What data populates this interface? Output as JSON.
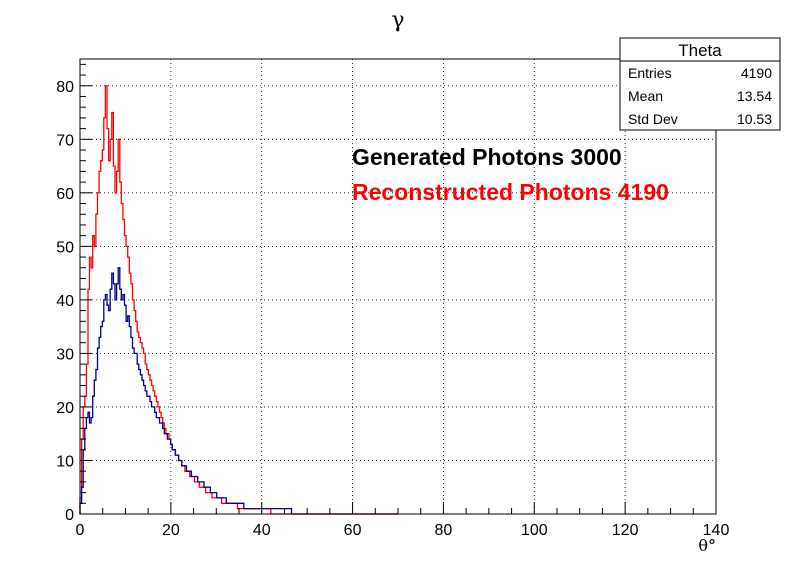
{
  "chart_data": {
    "type": "line",
    "title": "γ",
    "xlabel": "θ°",
    "ylabel": "",
    "xlim": [
      0,
      140
    ],
    "ylim": [
      0,
      85
    ],
    "x_ticks": [
      0,
      20,
      40,
      60,
      80,
      100,
      120,
      140
    ],
    "y_ticks": [
      0,
      10,
      20,
      30,
      40,
      50,
      60,
      70,
      80
    ],
    "grid": true,
    "bin_width": 0.35,
    "series": [
      {
        "name": "Generated Photons 3000",
        "color": "#00008b",
        "values": [
          2,
          5,
          12,
          16,
          18,
          19,
          17,
          18,
          22,
          25,
          27,
          31,
          33,
          35,
          36,
          40,
          41,
          39,
          38,
          42,
          45,
          43,
          40,
          43,
          46,
          42,
          40,
          41,
          39,
          36,
          37,
          35,
          33,
          31,
          30,
          30,
          28,
          27,
          26,
          25,
          24,
          23,
          22,
          22,
          21,
          20,
          20,
          19,
          18,
          18,
          17,
          17,
          16,
          15,
          15,
          14,
          14,
          13,
          12,
          12,
          11,
          11,
          10,
          10,
          9,
          9,
          9,
          8,
          8,
          8,
          7,
          7,
          7,
          7,
          6,
          6,
          6,
          6,
          5,
          5,
          5,
          5,
          4,
          4,
          4,
          4,
          3,
          3,
          3,
          3,
          3,
          3,
          2,
          2,
          2,
          2,
          2,
          2,
          2,
          2,
          2,
          2,
          2,
          1,
          1,
          1,
          1,
          1,
          1,
          1,
          1,
          1,
          1,
          1,
          1,
          1,
          1,
          1,
          1,
          1,
          1,
          1,
          1,
          1,
          1,
          1,
          1,
          1,
          1,
          1,
          1,
          1,
          1,
          0,
          0,
          0,
          0,
          0,
          0,
          0,
          0,
          0,
          0,
          0,
          0,
          0,
          0,
          0,
          0,
          0,
          0,
          0,
          0,
          0,
          0,
          0,
          0,
          0,
          0,
          0,
          0,
          0,
          0,
          0,
          0,
          0,
          0,
          0,
          0,
          0,
          0,
          0,
          0,
          0,
          0,
          0,
          0,
          0,
          0,
          0,
          0,
          0,
          0,
          0,
          0,
          0,
          0,
          0,
          0,
          0,
          0,
          0,
          0,
          0,
          0,
          0,
          0,
          0,
          0,
          0
        ]
      },
      {
        "name": "Reconstructed Photons 4190",
        "color": "#ff0000",
        "values": [
          3,
          14,
          20,
          22,
          28,
          42,
          48,
          46,
          52,
          50,
          56,
          60,
          64,
          66,
          68,
          74,
          80,
          72,
          66,
          70,
          75,
          65,
          60,
          64,
          70,
          62,
          58,
          55,
          52,
          50,
          48,
          45,
          43,
          40,
          38,
          36,
          34,
          33,
          32,
          31,
          30,
          28,
          27,
          26,
          25,
          24,
          23,
          22,
          21,
          20,
          19,
          18,
          17,
          16,
          15,
          15,
          14,
          13,
          12,
          12,
          11,
          11,
          10,
          10,
          9,
          9,
          8,
          8,
          8,
          7,
          7,
          7,
          6,
          6,
          6,
          5,
          5,
          5,
          5,
          4,
          4,
          4,
          4,
          3,
          3,
          3,
          3,
          3,
          3,
          2,
          2,
          2,
          2,
          2,
          2,
          2,
          2,
          2,
          2,
          1,
          1,
          1,
          1,
          1,
          1,
          1,
          1,
          1,
          1,
          1,
          1,
          1,
          1,
          1,
          1,
          1,
          1,
          1,
          1,
          1,
          0,
          0,
          0,
          0,
          0,
          0,
          0,
          0,
          0,
          0,
          0,
          0,
          0,
          0,
          0,
          0,
          0,
          0,
          0,
          0,
          0,
          0,
          0,
          0,
          0,
          0,
          0,
          0,
          0,
          0,
          0,
          0,
          0,
          0,
          0,
          0,
          0,
          0,
          0,
          0,
          0,
          0,
          0,
          0,
          0,
          0,
          0,
          0,
          0,
          0,
          0,
          0,
          0,
          0,
          0,
          0,
          0,
          0,
          0,
          0,
          0,
          0,
          0,
          0,
          0,
          0,
          0,
          0,
          0,
          0,
          0,
          0,
          0,
          0,
          0,
          0,
          0,
          0,
          0,
          0
        ]
      }
    ],
    "stats_box": {
      "title": "Theta",
      "rows": [
        {
          "label": "Entries",
          "value": "4190"
        },
        {
          "label": "Mean",
          "value": "13.54"
        },
        {
          "label": "Std Dev",
          "value": "10.53"
        }
      ]
    },
    "legend": {
      "placement": "top-right",
      "entries": [
        {
          "text": "Generated Photons 3000",
          "color": "#000000"
        },
        {
          "text": "Reconstructed Photons 4190",
          "color": "#ff0000"
        }
      ]
    }
  }
}
